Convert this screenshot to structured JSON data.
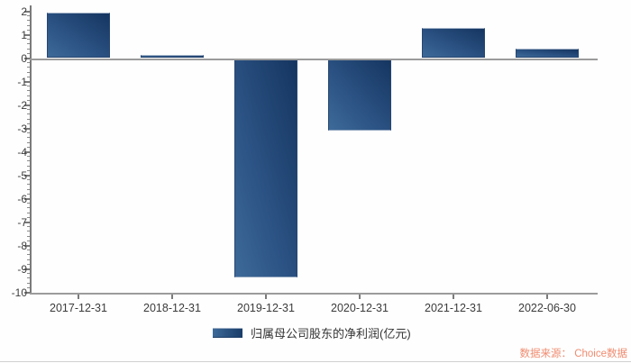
{
  "chart_data": {
    "type": "bar",
    "categories": [
      "2017-12-31",
      "2018-12-31",
      "2019-12-31",
      "2020-12-31",
      "2021-12-31",
      "2022-06-30"
    ],
    "values": [
      1.95,
      0.15,
      -9.35,
      -3.1,
      1.3,
      0.42
    ],
    "series_name": "归属母公司股东的净利润(亿元)",
    "title": "",
    "xlabel": "",
    "ylabel": "",
    "ylim": [
      -10,
      2
    ],
    "y_tick_step": 1,
    "y_minor_step": 0.2,
    "grid": false,
    "legend_position": "bottom-center"
  },
  "legend": {
    "label": "归属母公司股东的净利润(亿元)"
  },
  "footer": {
    "source_label": "数据来源： Choice数据"
  },
  "colors": {
    "bar_gradient_light": "#3d6a99",
    "bar_gradient_dark": "#153560",
    "axis": "#9b9b9b",
    "label_text": "#3b3b3b",
    "source_text": "#f08c70"
  }
}
